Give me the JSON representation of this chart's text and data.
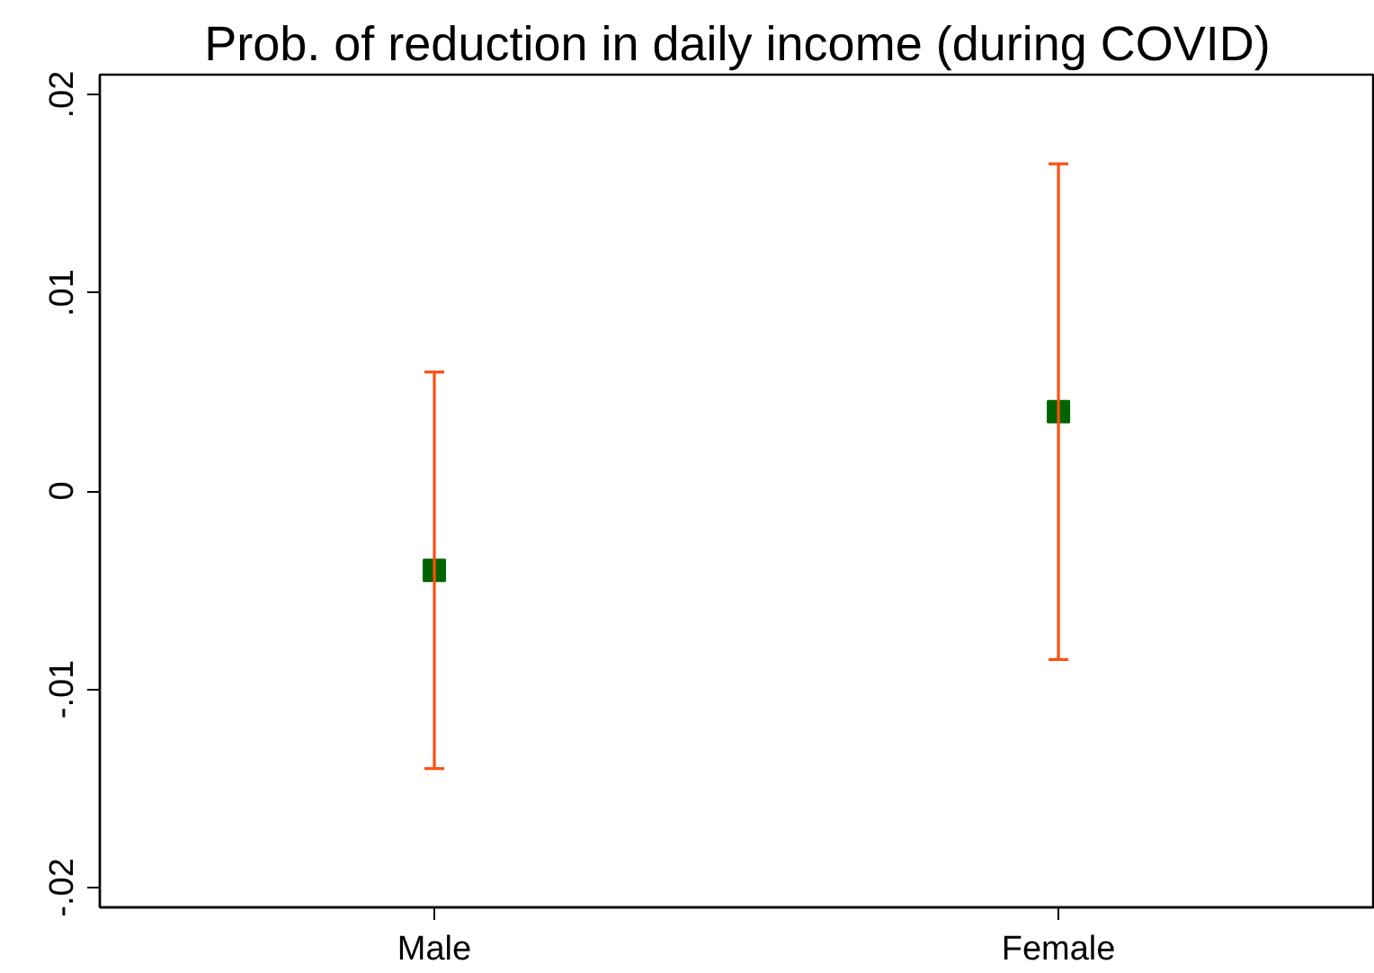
{
  "chart_data": {
    "type": "scatter",
    "title": "Prob. of reduction in daily income (during COVID)",
    "categories": [
      "Male",
      "Female"
    ],
    "values": [
      -0.004,
      0.004
    ],
    "errors": [
      [
        -0.014,
        0.006
      ],
      [
        -0.0085,
        0.0165
      ]
    ],
    "color": "#006400",
    "marker": "square",
    "grid": false,
    "ylim": [
      -0.021,
      0.021
    ],
    "yticks": [
      {
        "value": -0.02,
        "label": "-.02"
      },
      {
        "value": -0.01,
        "label": "-.01"
      },
      0,
      {
        "value": 0.01,
        "label": ".01"
      },
      {
        "value": 0.02,
        "label": ".02"
      }
    ]
  }
}
